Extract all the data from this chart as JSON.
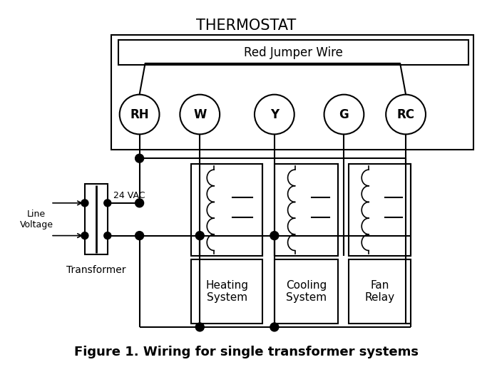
{
  "title": "THERMOSTAT",
  "caption": "Figure 1. Wiring for single transformer systems",
  "jumper_label": "Red Jumper Wire",
  "terminals": [
    "RH",
    "W",
    "Y",
    "G",
    "RC"
  ],
  "bg_color": "#ffffff",
  "fig_w": 6.9,
  "fig_h": 5.22,
  "dpi": 100
}
